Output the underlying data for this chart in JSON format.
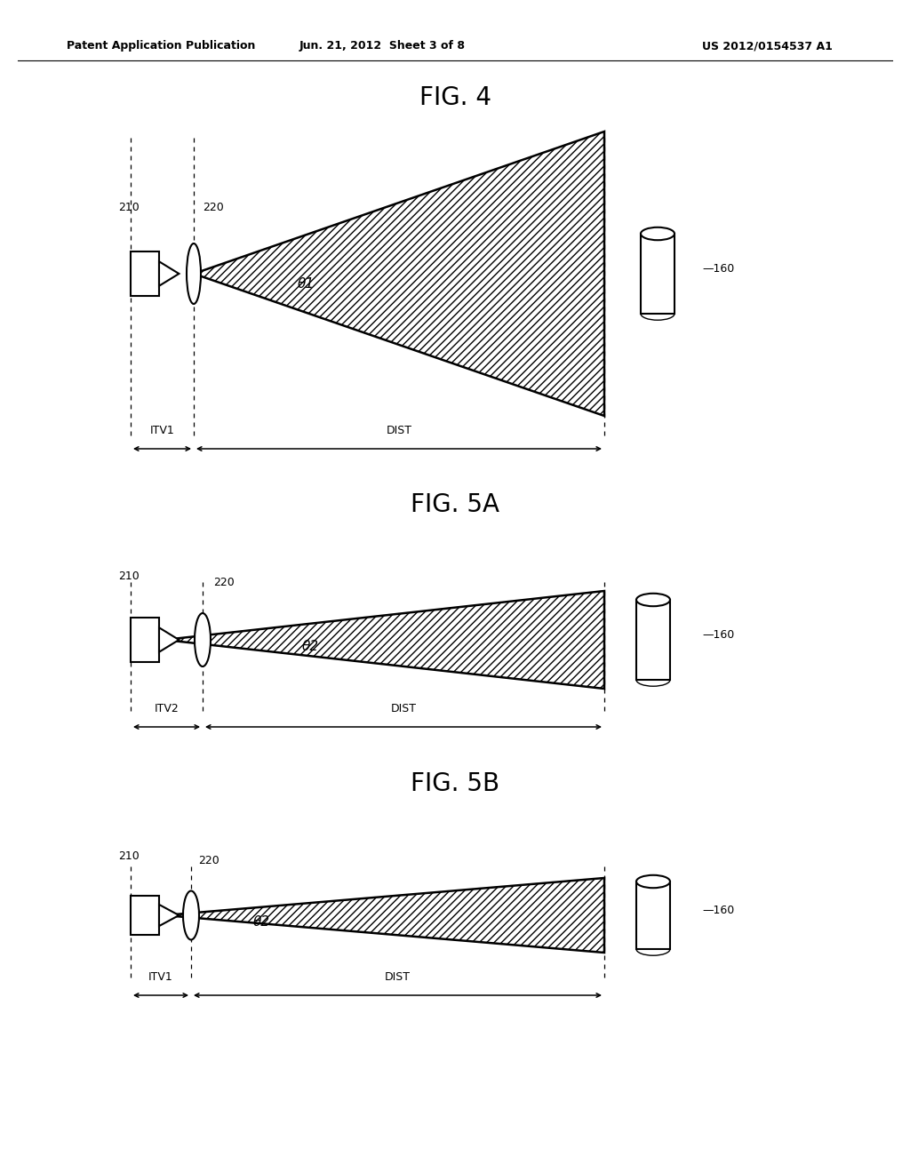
{
  "bg_color": "#ffffff",
  "line_color": "#000000",
  "header_left": "Patent Application Publication",
  "header_center": "Jun. 21, 2012  Sheet 3 of 8",
  "header_right": "US 2012/0154537 A1",
  "fig4_title": "FIG. 4",
  "fig5a_title": "FIG. 5A",
  "fig5b_title": "FIG. 5B"
}
